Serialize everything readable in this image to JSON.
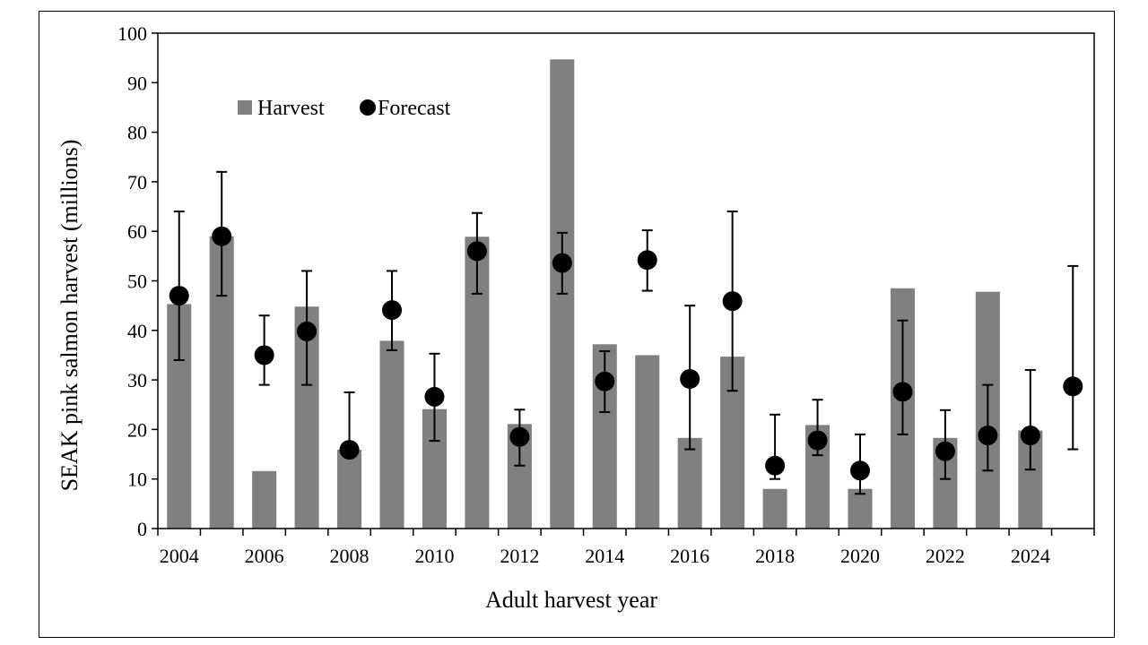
{
  "chart_data": {
    "type": "bar",
    "xlabel": "Adult harvest year",
    "ylabel": "SEAK pink salmon harvest (millions)",
    "ylim": [
      0,
      100
    ],
    "yticks": [
      0,
      10,
      20,
      30,
      40,
      50,
      60,
      70,
      80,
      90,
      100
    ],
    "x": [
      2004,
      2005,
      2006,
      2007,
      2008,
      2009,
      2010,
      2011,
      2012,
      2013,
      2014,
      2015,
      2016,
      2017,
      2018,
      2019,
      2020,
      2021,
      2022,
      2023,
      2024,
      2025
    ],
    "xtick_labels": [
      "2004",
      "2006",
      "2008",
      "2010",
      "2012",
      "2014",
      "2016",
      "2018",
      "2020",
      "2022",
      "2024"
    ],
    "legend": {
      "placement": "top-left",
      "harvest_label": "Harvest",
      "forecast_label": "Forecast"
    },
    "series": [
      {
        "name": "Harvest",
        "kind": "bar",
        "color": "#808080",
        "values": [
          45.3,
          59.0,
          11.6,
          44.8,
          15.9,
          37.9,
          24.1,
          58.9,
          21.1,
          94.7,
          37.2,
          35.0,
          18.3,
          34.7,
          8.0,
          20.9,
          8.0,
          48.5,
          18.3,
          47.8,
          19.8,
          null
        ]
      },
      {
        "name": "Forecast",
        "kind": "point",
        "color": "#000000",
        "values": [
          47.0,
          59.0,
          35.0,
          39.8,
          15.9,
          44.1,
          26.6,
          56.0,
          18.5,
          53.6,
          29.7,
          54.2,
          30.2,
          45.9,
          12.7,
          17.8,
          11.7,
          27.6,
          15.6,
          18.8,
          18.8,
          28.7
        ],
        "lower": [
          34.0,
          47.0,
          29.0,
          29.0,
          15.9,
          36.0,
          17.7,
          47.4,
          12.7,
          47.4,
          23.5,
          48.0,
          16.0,
          27.8,
          10.0,
          14.8,
          7.0,
          19.0,
          10.0,
          11.7,
          11.9,
          16.0
        ],
        "upper": [
          64.0,
          72.0,
          43.0,
          52.0,
          27.5,
          52.0,
          35.3,
          63.7,
          24.0,
          59.7,
          35.8,
          60.2,
          45.0,
          64.0,
          23.0,
          26.0,
          19.0,
          42.0,
          23.9,
          29.0,
          32.0,
          53.0
        ]
      }
    ]
  }
}
